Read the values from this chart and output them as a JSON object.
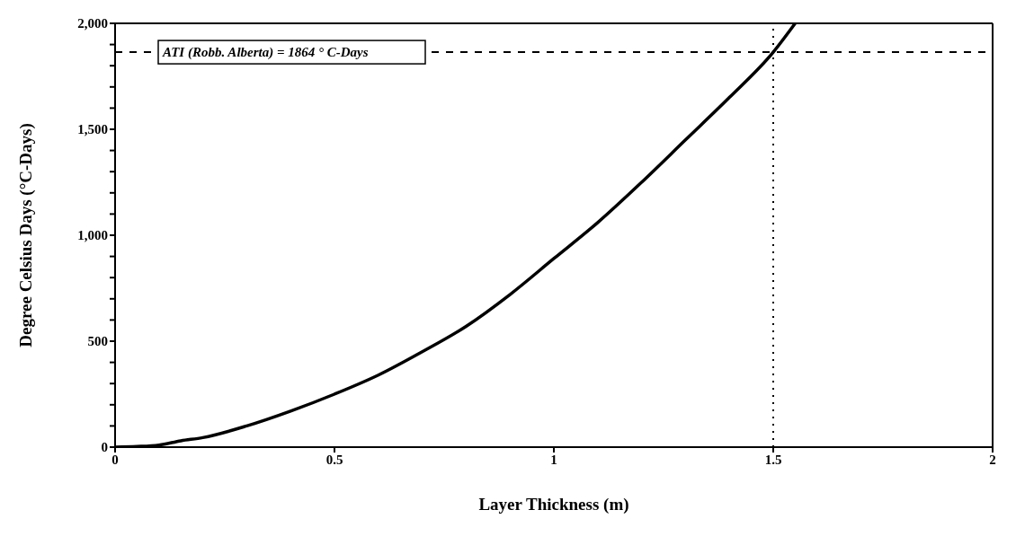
{
  "chart_data": {
    "type": "line",
    "xlabel": "Layer Thickness (m)",
    "ylabel": "Degree Celsius Days (°C-Days)",
    "x": [
      0,
      0.05,
      0.1,
      0.15,
      0.2,
      0.3,
      0.4,
      0.5,
      0.6,
      0.7,
      0.8,
      0.9,
      1.0,
      1.1,
      1.2,
      1.3,
      1.4,
      1.5,
      1.55
    ],
    "series": [
      {
        "color": "#000000",
        "values": [
          0,
          3,
          10,
          30,
          45,
          100,
          170,
          250,
          340,
          450,
          570,
          720,
          890,
          1060,
          1250,
          1450,
          1650,
          1864,
          2000
        ]
      }
    ],
    "xlim": [
      0,
      2
    ],
    "xticks": [
      0,
      0.5,
      1,
      1.5,
      2
    ],
    "ylim": [
      0,
      2000
    ],
    "yticks": [
      {
        "value": 0,
        "label": "0"
      },
      {
        "value": 100,
        "label": null
      },
      {
        "value": 200,
        "label": null
      },
      {
        "value": 300,
        "label": null
      },
      {
        "value": 400,
        "label": null
      },
      {
        "value": 500,
        "label": "500"
      },
      {
        "value": 600,
        "label": null
      },
      {
        "value": 700,
        "label": null
      },
      {
        "value": 800,
        "label": null
      },
      {
        "value": 900,
        "label": null
      },
      {
        "value": 1000,
        "label": "1,000"
      },
      {
        "value": 1100,
        "label": null
      },
      {
        "value": 1200,
        "label": null
      },
      {
        "value": 1300,
        "label": null
      },
      {
        "value": 1400,
        "label": null
      },
      {
        "value": 1500,
        "label": "1,500"
      },
      {
        "value": 1600,
        "label": null
      },
      {
        "value": 1700,
        "label": null
      },
      {
        "value": 1800,
        "label": null
      },
      {
        "value": 1900,
        "label": null
      },
      {
        "value": 2000,
        "label": "2,000"
      }
    ],
    "ref_lines": [
      {
        "axis": "y",
        "value": 1864,
        "label": "ATI (Robb. Alberta) = 1864 ° C-Days",
        "color": "#000000",
        "line_style": "dashed"
      },
      {
        "axis": "x",
        "value": 1.5,
        "color": "#000000",
        "line_style": "dotted"
      }
    ],
    "grid": false,
    "marker": "none",
    "line_style": "solid"
  }
}
